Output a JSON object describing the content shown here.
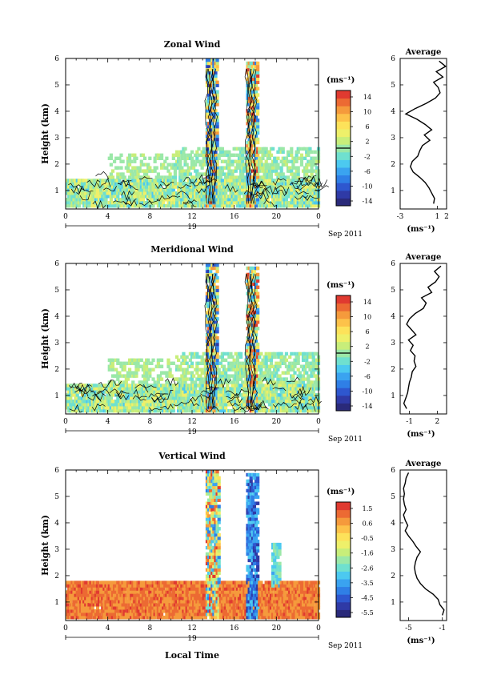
{
  "figure": {
    "xlabel": "Local Time",
    "ylabel": "Height (km)",
    "date_label": "19",
    "month_label": "Sep 2011",
    "cbar_unit": "(ms⁻¹)",
    "avg_title": "Average",
    "avg_unit": "(ms⁻¹)",
    "x_ticks": [
      "0",
      "4",
      "8",
      "12",
      "16",
      "20",
      "0"
    ],
    "y_ticks": [
      "1",
      "2",
      "3",
      "4",
      "5",
      "6"
    ],
    "colormap": [
      "#2a2a7a",
      "#2f3aa6",
      "#2e57cf",
      "#2f7fe6",
      "#3aa3f0",
      "#4cc9f0",
      "#6fe0cf",
      "#9be8a8",
      "#c8ee7a",
      "#eef06a",
      "#fde25a",
      "#fdc24a",
      "#f59a3c",
      "#ec6a33",
      "#e03a30"
    ]
  },
  "chart_data": [
    {
      "type": "heatmap",
      "title": "Zonal Wind",
      "xlabel": "Local Time",
      "ylabel": "Height (km)",
      "xlim": [
        0,
        24
      ],
      "ylim": [
        0.3,
        6
      ],
      "colorbar": {
        "ticks": [
          "14",
          "10",
          "6",
          "2",
          "-2",
          "-6",
          "-10",
          "-14"
        ],
        "range": [
          -16,
          16
        ]
      },
      "profile": {
        "title": "Average",
        "xlabel": "(ms⁻¹)",
        "xticks": [
          "-3",
          "1",
          "2"
        ],
        "xlim": [
          -3,
          2
        ],
        "heights": [
          0.5,
          0.7,
          0.9,
          1.1,
          1.3,
          1.5,
          1.7,
          1.9,
          2.1,
          2.3,
          2.5,
          2.7,
          2.9,
          3.1,
          3.3,
          3.5,
          3.7,
          3.9,
          4.1,
          4.3,
          4.5,
          4.7,
          4.9,
          5.1,
          5.3,
          5.5,
          5.7,
          5.9
        ],
        "values": [
          0.6,
          0.7,
          0.4,
          0.1,
          -0.3,
          -0.9,
          -1.6,
          -1.9,
          -1.7,
          -1.1,
          -0.9,
          -0.6,
          0.2,
          -0.4,
          0.4,
          -0.3,
          -1.2,
          -2.4,
          -1.4,
          -0.2,
          0.8,
          1.3,
          1.1,
          0.6,
          1.6,
          0.9,
          1.9,
          1.2
        ]
      }
    },
    {
      "type": "heatmap",
      "title": "Meridional Wind",
      "xlabel": "Local Time",
      "ylabel": "Height (km)",
      "xlim": [
        0,
        24
      ],
      "ylim": [
        0.3,
        6
      ],
      "colorbar": {
        "ticks": [
          "14",
          "10",
          "6",
          "2",
          "-2",
          "-6",
          "-10",
          "-14"
        ],
        "range": [
          -16,
          16
        ]
      },
      "profile": {
        "title": "Average",
        "xlabel": "(ms⁻¹)",
        "xticks": [
          "-1",
          "2"
        ],
        "xlim": [
          -2,
          3
        ],
        "heights": [
          0.5,
          0.7,
          0.9,
          1.1,
          1.3,
          1.5,
          1.7,
          1.9,
          2.1,
          2.3,
          2.5,
          2.7,
          2.9,
          3.1,
          3.3,
          3.5,
          3.7,
          3.9,
          4.1,
          4.3,
          4.5,
          4.7,
          4.9,
          5.1,
          5.3,
          5.5,
          5.7,
          5.9
        ],
        "values": [
          -1.3,
          -1.6,
          -1.4,
          -1.2,
          -1.1,
          -1.0,
          -0.8,
          -0.7,
          -0.3,
          -0.5,
          -0.4,
          -0.9,
          -0.6,
          -1.1,
          -0.3,
          -0.8,
          -1.3,
          -1.0,
          -0.4,
          0.5,
          0.8,
          0.3,
          1.4,
          1.0,
          1.8,
          2.2,
          1.7,
          2.4
        ]
      }
    },
    {
      "type": "heatmap",
      "title": "Vertical Wind",
      "xlabel": "Local Time",
      "ylabel": "Height (km)",
      "xlim": [
        0,
        24
      ],
      "ylim": [
        0.3,
        6
      ],
      "colorbar": {
        "ticks": [
          "1.5",
          "0.6",
          "-0.5",
          "-1.6",
          "-2.6",
          "-3.5",
          "-4.5",
          "-5.5"
        ],
        "range": [
          -6,
          2
        ]
      },
      "profile": {
        "title": "Average",
        "xlabel": "(ms⁻¹)",
        "xticks": [
          "-5",
          "-1"
        ],
        "xlim": [
          -6,
          -0.5
        ],
        "heights": [
          0.5,
          0.7,
          0.9,
          1.1,
          1.3,
          1.5,
          1.7,
          1.9,
          2.1,
          2.3,
          2.5,
          2.7,
          2.9,
          3.1,
          3.3,
          3.5,
          3.7,
          3.9,
          4.1,
          4.3,
          4.5,
          4.7,
          4.9,
          5.1,
          5.3,
          5.5,
          5.7,
          5.9
        ],
        "values": [
          -1.0,
          -0.8,
          -1.3,
          -1.5,
          -2.1,
          -3.0,
          -3.6,
          -4.0,
          -4.2,
          -4.3,
          -4.2,
          -4.0,
          -3.6,
          -4.1,
          -4.5,
          -5.0,
          -5.4,
          -5.1,
          -5.4,
          -5.6,
          -5.3,
          -5.5,
          -5.6,
          -5.5,
          -5.6,
          -5.4,
          -5.3,
          -5.0
        ]
      }
    }
  ]
}
